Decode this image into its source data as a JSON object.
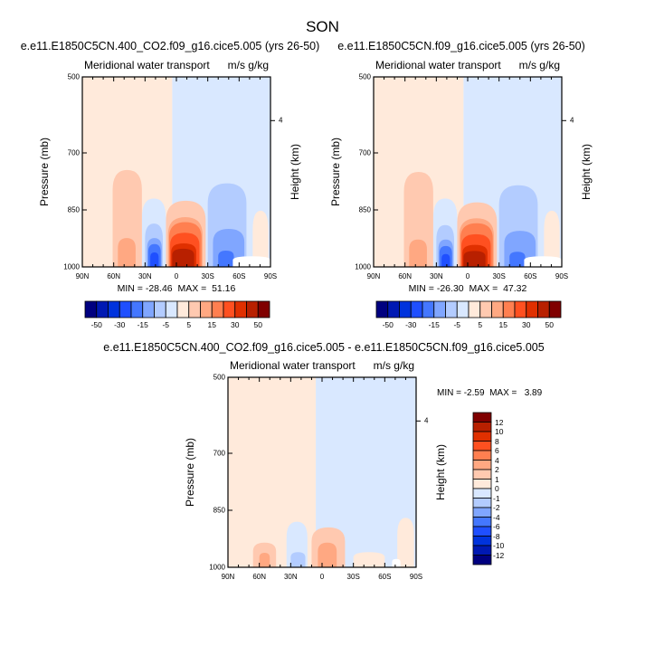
{
  "chart_data": {
    "type": "heatmap",
    "title": "SON",
    "palette": [
      "#000080",
      "#0019b3",
      "#0033dd",
      "#1f4fff",
      "#4477ff",
      "#80a6ff",
      "#b3ccff",
      "#d9e8ff",
      "#ffeadb",
      "#ffc9b0",
      "#ffa882",
      "#ff7f50",
      "#ff5020",
      "#e03000",
      "#b82000",
      "#800000"
    ],
    "panels": [
      {
        "subtitle": "e.e11.E1850C5CN.400_CO2.f09_g16.cice5.005 (yrs 26-50)",
        "left_label": "Meridional water transport",
        "right_label": "m/s g/kg",
        "ylabel": "Pressure (mb)",
        "ylabel_right": "Height (km)",
        "yticks": [
          "500",
          "700",
          "850",
          "1000"
        ],
        "yticks_values": [
          500,
          700,
          850,
          1000
        ],
        "height_tick": "4",
        "height_tick_p": 615,
        "xticks": [
          "90N",
          "60N",
          "30N",
          "0",
          "30S",
          "60S",
          "90S"
        ],
        "xlim": [
          90,
          -90
        ],
        "ylim": [
          500,
          1000
        ],
        "minmax": "MIN = -28.46  MAX =  51.16",
        "colorbar_labels": [
          "-50",
          "-30",
          "-15",
          "-5",
          "5",
          "15",
          "30",
          "50"
        ],
        "background": {
          "north_level": 8,
          "south_level": 7,
          "boundary_lat": 4
        },
        "regions": [
          {
            "lat": [
              33,
              10
            ],
            "p_top": 820,
            "level": 7
          },
          {
            "lat": [
              30,
              13
            ],
            "p_top": 886,
            "level": 6
          },
          {
            "lat": [
              28,
              14
            ],
            "p_top": 924,
            "level": 5
          },
          {
            "lat": [
              27,
              15
            ],
            "p_top": 940,
            "level": 4
          },
          {
            "lat": [
              25,
              17
            ],
            "p_top": 962,
            "level": 3
          },
          {
            "lat": [
              10,
              -28
            ],
            "p_top": 826,
            "level": 9
          },
          {
            "lat": [
              8,
              -25
            ],
            "p_top": 869,
            "level": 10
          },
          {
            "lat": [
              7,
              -24
            ],
            "p_top": 882,
            "level": 11
          },
          {
            "lat": [
              6,
              -22
            ],
            "p_top": 910,
            "level": 12
          },
          {
            "lat": [
              5,
              -19
            ],
            "p_top": 938,
            "level": 13
          },
          {
            "lat": [
              4,
              -17
            ],
            "p_top": 952,
            "level": 14
          },
          {
            "lat": [
              61,
              33
            ],
            "p_top": 745,
            "level": 9
          },
          {
            "lat": [
              56,
              39
            ],
            "p_top": 924,
            "level": 10
          },
          {
            "lat": [
              -30,
              -67
            ],
            "p_top": 780,
            "level": 6
          },
          {
            "lat": [
              -35,
              -65
            ],
            "p_top": 900,
            "level": 5
          },
          {
            "lat": [
              -40,
              -55
            ],
            "p_top": 957,
            "level": 4
          },
          {
            "lat": [
              -73,
              -88
            ],
            "p_top": 852,
            "level": 8
          },
          {
            "lat": [
              -54,
              -90
            ],
            "p_top": 972,
            "level": -1
          }
        ]
      },
      {
        "subtitle": "e.e11.E1850C5CN.f09_g16.cice5.005 (yrs 26-50)",
        "left_label": "Meridional water transport",
        "right_label": "m/s g/kg",
        "ylabel": "Pressure (mb)",
        "ylabel_right": "Height (km)",
        "yticks": [
          "500",
          "700",
          "850",
          "1000"
        ],
        "yticks_values": [
          500,
          700,
          850,
          1000
        ],
        "height_tick": "4",
        "height_tick_p": 615,
        "xticks": [
          "90N",
          "60N",
          "30N",
          "0",
          "30S",
          "60S",
          "90S"
        ],
        "xlim": [
          90,
          -90
        ],
        "ylim": [
          500,
          1000
        ],
        "minmax": "MIN = -26.30  MAX =  47.32",
        "colorbar_labels": [
          "-50",
          "-30",
          "-15",
          "-5",
          "5",
          "15",
          "30",
          "50"
        ],
        "background": {
          "north_level": 8,
          "south_level": 7,
          "boundary_lat": 4
        },
        "regions": [
          {
            "lat": [
              33,
              10
            ],
            "p_top": 820,
            "level": 7
          },
          {
            "lat": [
              30,
              13
            ],
            "p_top": 890,
            "level": 6
          },
          {
            "lat": [
              28,
              14
            ],
            "p_top": 928,
            "level": 5
          },
          {
            "lat": [
              27,
              15
            ],
            "p_top": 945,
            "level": 4
          },
          {
            "lat": [
              25,
              17
            ],
            "p_top": 966,
            "level": 3
          },
          {
            "lat": [
              10,
              -28
            ],
            "p_top": 830,
            "level": 9
          },
          {
            "lat": [
              8,
              -25
            ],
            "p_top": 872,
            "level": 10
          },
          {
            "lat": [
              7,
              -24
            ],
            "p_top": 885,
            "level": 11
          },
          {
            "lat": [
              6,
              -22
            ],
            "p_top": 914,
            "level": 12
          },
          {
            "lat": [
              5,
              -19
            ],
            "p_top": 942,
            "level": 13
          },
          {
            "lat": [
              4,
              -17
            ],
            "p_top": 958,
            "level": 14
          },
          {
            "lat": [
              61,
              33
            ],
            "p_top": 750,
            "level": 9
          },
          {
            "lat": [
              56,
              39
            ],
            "p_top": 928,
            "level": 10
          },
          {
            "lat": [
              -30,
              -67
            ],
            "p_top": 785,
            "level": 6
          },
          {
            "lat": [
              -35,
              -65
            ],
            "p_top": 905,
            "level": 5
          },
          {
            "lat": [
              -40,
              -55
            ],
            "p_top": 960,
            "level": 4
          },
          {
            "lat": [
              -73,
              -88
            ],
            "p_top": 852,
            "level": 8
          },
          {
            "lat": [
              -54,
              -90
            ],
            "p_top": 972,
            "level": -1
          }
        ]
      },
      {
        "subtitle": "e.e11.E1850C5CN.400_CO2.f09_g16.cice5.005 - e.e11.E1850C5CN.f09_g16.cice5.005",
        "left_label": "Meridional water transport",
        "right_label": "m/s g/kg",
        "ylabel": "Pressure (mb)",
        "ylabel_right": "Height (km)",
        "yticks": [
          "500",
          "700",
          "850",
          "1000"
        ],
        "yticks_values": [
          500,
          700,
          850,
          1000
        ],
        "height_tick": "4",
        "height_tick_p": 615,
        "xticks": [
          "90N",
          "60N",
          "30N",
          "0",
          "30S",
          "60S",
          "90S"
        ],
        "xlim": [
          90,
          -90
        ],
        "ylim": [
          500,
          1000
        ],
        "minmax": "MIN = -2.59  MAX =   3.89",
        "colorbar_labels": [
          "12",
          "10",
          "8",
          "6",
          "4",
          "2",
          "1",
          "0",
          "-1",
          "-2",
          "-4",
          "-6",
          "-8",
          "-10",
          "-12"
        ],
        "background": {
          "north_level": 8,
          "south_level": 7,
          "boundary_lat": 6
        },
        "regions": [
          {
            "lat": [
              34,
              14
            ],
            "p_top": 880,
            "level": 7
          },
          {
            "lat": [
              30,
              16
            ],
            "p_top": 960,
            "level": 6
          },
          {
            "lat": [
              10,
              -22
            ],
            "p_top": 895,
            "level": 9
          },
          {
            "lat": [
              4,
              -14
            ],
            "p_top": 935,
            "level": 10
          },
          {
            "lat": [
              66,
              44
            ],
            "p_top": 935,
            "level": 9
          },
          {
            "lat": [
              60,
              50
            ],
            "p_top": 962,
            "level": 10
          },
          {
            "lat": [
              -30,
              -60
            ],
            "p_top": 960,
            "level": 8
          },
          {
            "lat": [
              -72,
              -88
            ],
            "p_top": 870,
            "level": 8
          },
          {
            "lat": [
              -67,
              -75
            ],
            "p_top": 978,
            "level": -1
          }
        ]
      }
    ]
  }
}
